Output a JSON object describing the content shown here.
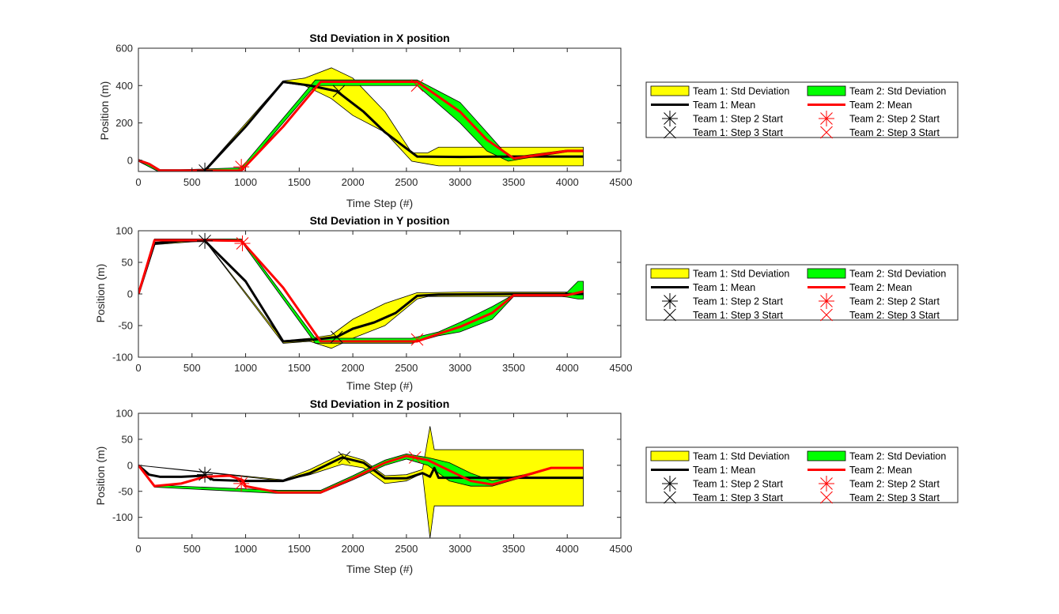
{
  "colors": {
    "team1_std_fill": "#ffff00",
    "team2_std_fill": "#00ff00",
    "team1_mean": "#000000",
    "team2_mean": "#ff0000",
    "axis": "#262626",
    "background": "#ffffff"
  },
  "legend": {
    "team1_std": "Team 1: Std Deviation",
    "team2_std": "Team 2: Std Deviation",
    "team1_mean": "Team 1: Mean",
    "team2_mean": "Team 2: Mean",
    "team1_step2": "Team 1: Step 2 Start",
    "team2_step2": "Team 2: Step 2 Start",
    "team1_step3": "Team 1: Step 3 Start",
    "team2_step3": "Team 2: Step 3 Start"
  },
  "chart_data": [
    {
      "type": "area",
      "title": "Std Deviation in X position",
      "xlabel": "Time Step (#)",
      "ylabel": "Position (m)",
      "xlim": [
        0,
        4500
      ],
      "ylim": [
        -60,
        600
      ],
      "xticks": [
        0,
        500,
        1000,
        1500,
        2000,
        2500,
        3000,
        3500,
        4000,
        4500
      ],
      "yticks": [
        0,
        200,
        400,
        600
      ],
      "legend_position": "right",
      "series": [
        {
          "name": "Team 1: Std Deviation",
          "kind": "band",
          "x": [
            0,
            200,
            620,
            1350,
            1550,
            1800,
            2000,
            2300,
            2550,
            2700,
            2800,
            3000,
            3500,
            4000,
            4150
          ],
          "upper": [
            5,
            -50,
            -50,
            425,
            440,
            495,
            440,
            260,
            40,
            40,
            70,
            70,
            70,
            70,
            70
          ],
          "lower": [
            -5,
            -60,
            -60,
            415,
            400,
            330,
            240,
            150,
            -5,
            -20,
            -30,
            -30,
            -30,
            -30,
            -30
          ]
        },
        {
          "name": "Team 2: Std Deviation",
          "kind": "band",
          "x": [
            0,
            200,
            960,
            1650,
            2600,
            2800,
            3000,
            3250,
            3450,
            3600,
            4000,
            4150
          ],
          "upper": [
            5,
            -55,
            -40,
            430,
            430,
            370,
            310,
            150,
            20,
            25,
            55,
            55
          ],
          "lower": [
            -5,
            -65,
            -60,
            400,
            400,
            300,
            200,
            50,
            -5,
            10,
            45,
            45
          ]
        },
        {
          "name": "Team 1: Mean",
          "kind": "line",
          "x": [
            0,
            100,
            200,
            400,
            620,
            1000,
            1350,
            1600,
            1850,
            2100,
            2300,
            2600,
            3000,
            3500,
            4150
          ],
          "values": [
            0,
            -20,
            -55,
            -55,
            -55,
            180,
            420,
            400,
            370,
            260,
            150,
            20,
            18,
            20,
            20
          ]
        },
        {
          "name": "Team 2: Mean",
          "kind": "line",
          "x": [
            0,
            100,
            200,
            400,
            600,
            960,
            1350,
            1700,
            2000,
            2600,
            2800,
            3000,
            3250,
            3500,
            4000,
            4150
          ],
          "values": [
            0,
            -20,
            -55,
            -55,
            -55,
            -55,
            180,
            420,
            420,
            420,
            340,
            260,
            110,
            10,
            50,
            50
          ]
        },
        {
          "name": "Team 1: Step 2 Start",
          "kind": "marker",
          "symbol": "asterisk",
          "x": [
            620
          ],
          "values": [
            -55
          ]
        },
        {
          "name": "Team 1: Step 3 Start",
          "kind": "marker",
          "symbol": "x",
          "x": [
            1870
          ],
          "values": [
            370
          ]
        },
        {
          "name": "Team 2: Step 2 Start",
          "kind": "marker",
          "symbol": "asterisk",
          "x": [
            960
          ],
          "values": [
            -35
          ]
        },
        {
          "name": "Team 2: Step 3 Start",
          "kind": "marker",
          "symbol": "x",
          "x": [
            2600
          ],
          "values": [
            400
          ]
        }
      ]
    },
    {
      "type": "area",
      "title": "Std Deviation in Y position",
      "xlabel": "Time Step (#)",
      "ylabel": "Position (m)",
      "xlim": [
        0,
        4500
      ],
      "ylim": [
        -100,
        100
      ],
      "xticks": [
        0,
        500,
        1000,
        1500,
        2000,
        2500,
        3000,
        3500,
        4000,
        4500
      ],
      "yticks": [
        -100,
        -50,
        0,
        50,
        100
      ],
      "legend_position": "right",
      "series": [
        {
          "name": "Team 1: Std Deviation",
          "kind": "band",
          "x": [
            0,
            150,
            620,
            1350,
            1600,
            1800,
            2000,
            2300,
            2600,
            2700,
            3000,
            3500,
            4000,
            4150
          ],
          "upper": [
            1,
            82,
            85,
            -74,
            -70,
            -65,
            -40,
            -15,
            2,
            2,
            3,
            3,
            3,
            3
          ],
          "lower": [
            -1,
            78,
            84,
            -78,
            -75,
            -86,
            -70,
            -50,
            -8,
            -4,
            -4,
            -4,
            -4,
            -4
          ]
        },
        {
          "name": "Team 2: Std Deviation",
          "kind": "band",
          "x": [
            0,
            150,
            960,
            1650,
            2550,
            2800,
            3000,
            3300,
            3500,
            3950,
            4000,
            4100,
            4150
          ],
          "upper": [
            1,
            87,
            87,
            -70,
            -70,
            -60,
            -45,
            -20,
            -1,
            -1,
            3,
            20,
            20
          ],
          "lower": [
            -1,
            85,
            83,
            -78,
            -78,
            -66,
            -60,
            -40,
            -4,
            -4,
            -5,
            -8,
            -8
          ]
        },
        {
          "name": "Team 1: Mean",
          "kind": "line",
          "x": [
            0,
            150,
            400,
            620,
            1000,
            1350,
            1650,
            1850,
            2000,
            2200,
            2400,
            2600,
            2800,
            3500,
            4150
          ],
          "values": [
            0,
            80,
            84,
            84,
            20,
            -75,
            -72,
            -68,
            -55,
            -45,
            -30,
            -3,
            -1,
            0,
            0
          ]
        },
        {
          "name": "Team 2: Mean",
          "kind": "line",
          "x": [
            0,
            150,
            400,
            620,
            960,
            1350,
            1700,
            2000,
            2600,
            2800,
            3000,
            3300,
            3500,
            4000,
            4150
          ],
          "values": [
            0,
            85,
            85,
            85,
            84,
            10,
            -75,
            -75,
            -75,
            -63,
            -52,
            -30,
            -2,
            -2,
            4
          ]
        },
        {
          "name": "Team 1: Step 2 Start",
          "kind": "marker",
          "symbol": "asterisk",
          "x": [
            620
          ],
          "values": [
            84
          ]
        },
        {
          "name": "Team 1: Step 3 Start",
          "kind": "marker",
          "symbol": "x",
          "x": [
            1850
          ],
          "values": [
            -68
          ]
        },
        {
          "name": "Team 2: Step 2 Start",
          "kind": "marker",
          "symbol": "asterisk",
          "x": [
            970
          ],
          "values": [
            80
          ]
        },
        {
          "name": "Team 2: Step 3 Start",
          "kind": "marker",
          "symbol": "x",
          "x": [
            2600
          ],
          "values": [
            -72
          ]
        }
      ]
    },
    {
      "type": "area",
      "title": "Std Deviation in Z position",
      "xlabel": "Time Step (#)",
      "ylabel": "Position (m)",
      "xlim": [
        0,
        4500
      ],
      "ylim": [
        -140,
        100
      ],
      "xticks": [
        0,
        500,
        1000,
        1500,
        2000,
        2500,
        3000,
        3500,
        4000,
        4500
      ],
      "yticks": [
        -100,
        -50,
        0,
        50,
        100
      ],
      "legend_position": "right",
      "series": [
        {
          "name": "Team 1: Std Deviation",
          "kind": "band",
          "x": [
            0,
            1350,
            1600,
            1900,
            2100,
            2300,
            2500,
            2650,
            2720,
            2760,
            2800,
            4150
          ],
          "upper": [
            0,
            -28,
            -8,
            22,
            10,
            -20,
            -18,
            -8,
            75,
            30,
            30,
            30
          ],
          "lower": [
            0,
            -30,
            -18,
            2,
            -5,
            -35,
            -30,
            -15,
            -140,
            -78,
            -78,
            -78
          ]
        },
        {
          "name": "Team 2: Std Deviation",
          "kind": "band",
          "x": [
            0,
            150,
            1300,
            1700,
            2000,
            2300,
            2500,
            2700,
            2900,
            3100,
            3300,
            3600,
            3850,
            4150
          ],
          "upper": [
            0,
            -38,
            -48,
            -48,
            -20,
            10,
            22,
            15,
            5,
            -15,
            -30,
            -18,
            -5,
            -5
          ],
          "lower": [
            0,
            -42,
            -54,
            -54,
            -28,
            0,
            12,
            0,
            -30,
            -40,
            -40,
            -22,
            -6,
            -6
          ]
        },
        {
          "name": "Team 1: Mean",
          "kind": "line",
          "x": [
            0,
            100,
            200,
            400,
            620,
            700,
            1000,
            1350,
            1600,
            1900,
            2100,
            2300,
            2500,
            2650,
            2720,
            2760,
            2800,
            3200,
            4150
          ],
          "values": [
            0,
            -18,
            -22,
            -22,
            -20,
            -28,
            -30,
            -30,
            -15,
            15,
            5,
            -25,
            -25,
            -15,
            -22,
            -5,
            -24,
            -24,
            -24
          ]
        },
        {
          "name": "Team 2: Mean",
          "kind": "line",
          "x": [
            0,
            150,
            400,
            620,
            850,
            970,
            1000,
            1300,
            1700,
            2000,
            2300,
            2500,
            2700,
            2900,
            3100,
            3300,
            3600,
            3850,
            4150
          ],
          "values": [
            0,
            -40,
            -35,
            -22,
            -20,
            -28,
            -40,
            -52,
            -52,
            -25,
            5,
            18,
            10,
            -10,
            -30,
            -37,
            -20,
            -5,
            -5
          ]
        },
        {
          "name": "Team 1: Step 2 Start",
          "kind": "marker",
          "symbol": "asterisk",
          "x": [
            620
          ],
          "values": [
            -18
          ]
        },
        {
          "name": "Team 1: Step 3 Start",
          "kind": "marker",
          "symbol": "x",
          "x": [
            1920
          ],
          "values": [
            15
          ]
        },
        {
          "name": "Team 2: Step 2 Start",
          "kind": "marker",
          "symbol": "asterisk",
          "x": [
            960
          ],
          "values": [
            -35
          ]
        },
        {
          "name": "Team 2: Step 3 Start",
          "kind": "marker",
          "symbol": "x",
          "x": [
            2580
          ],
          "values": [
            15
          ]
        }
      ]
    }
  ]
}
